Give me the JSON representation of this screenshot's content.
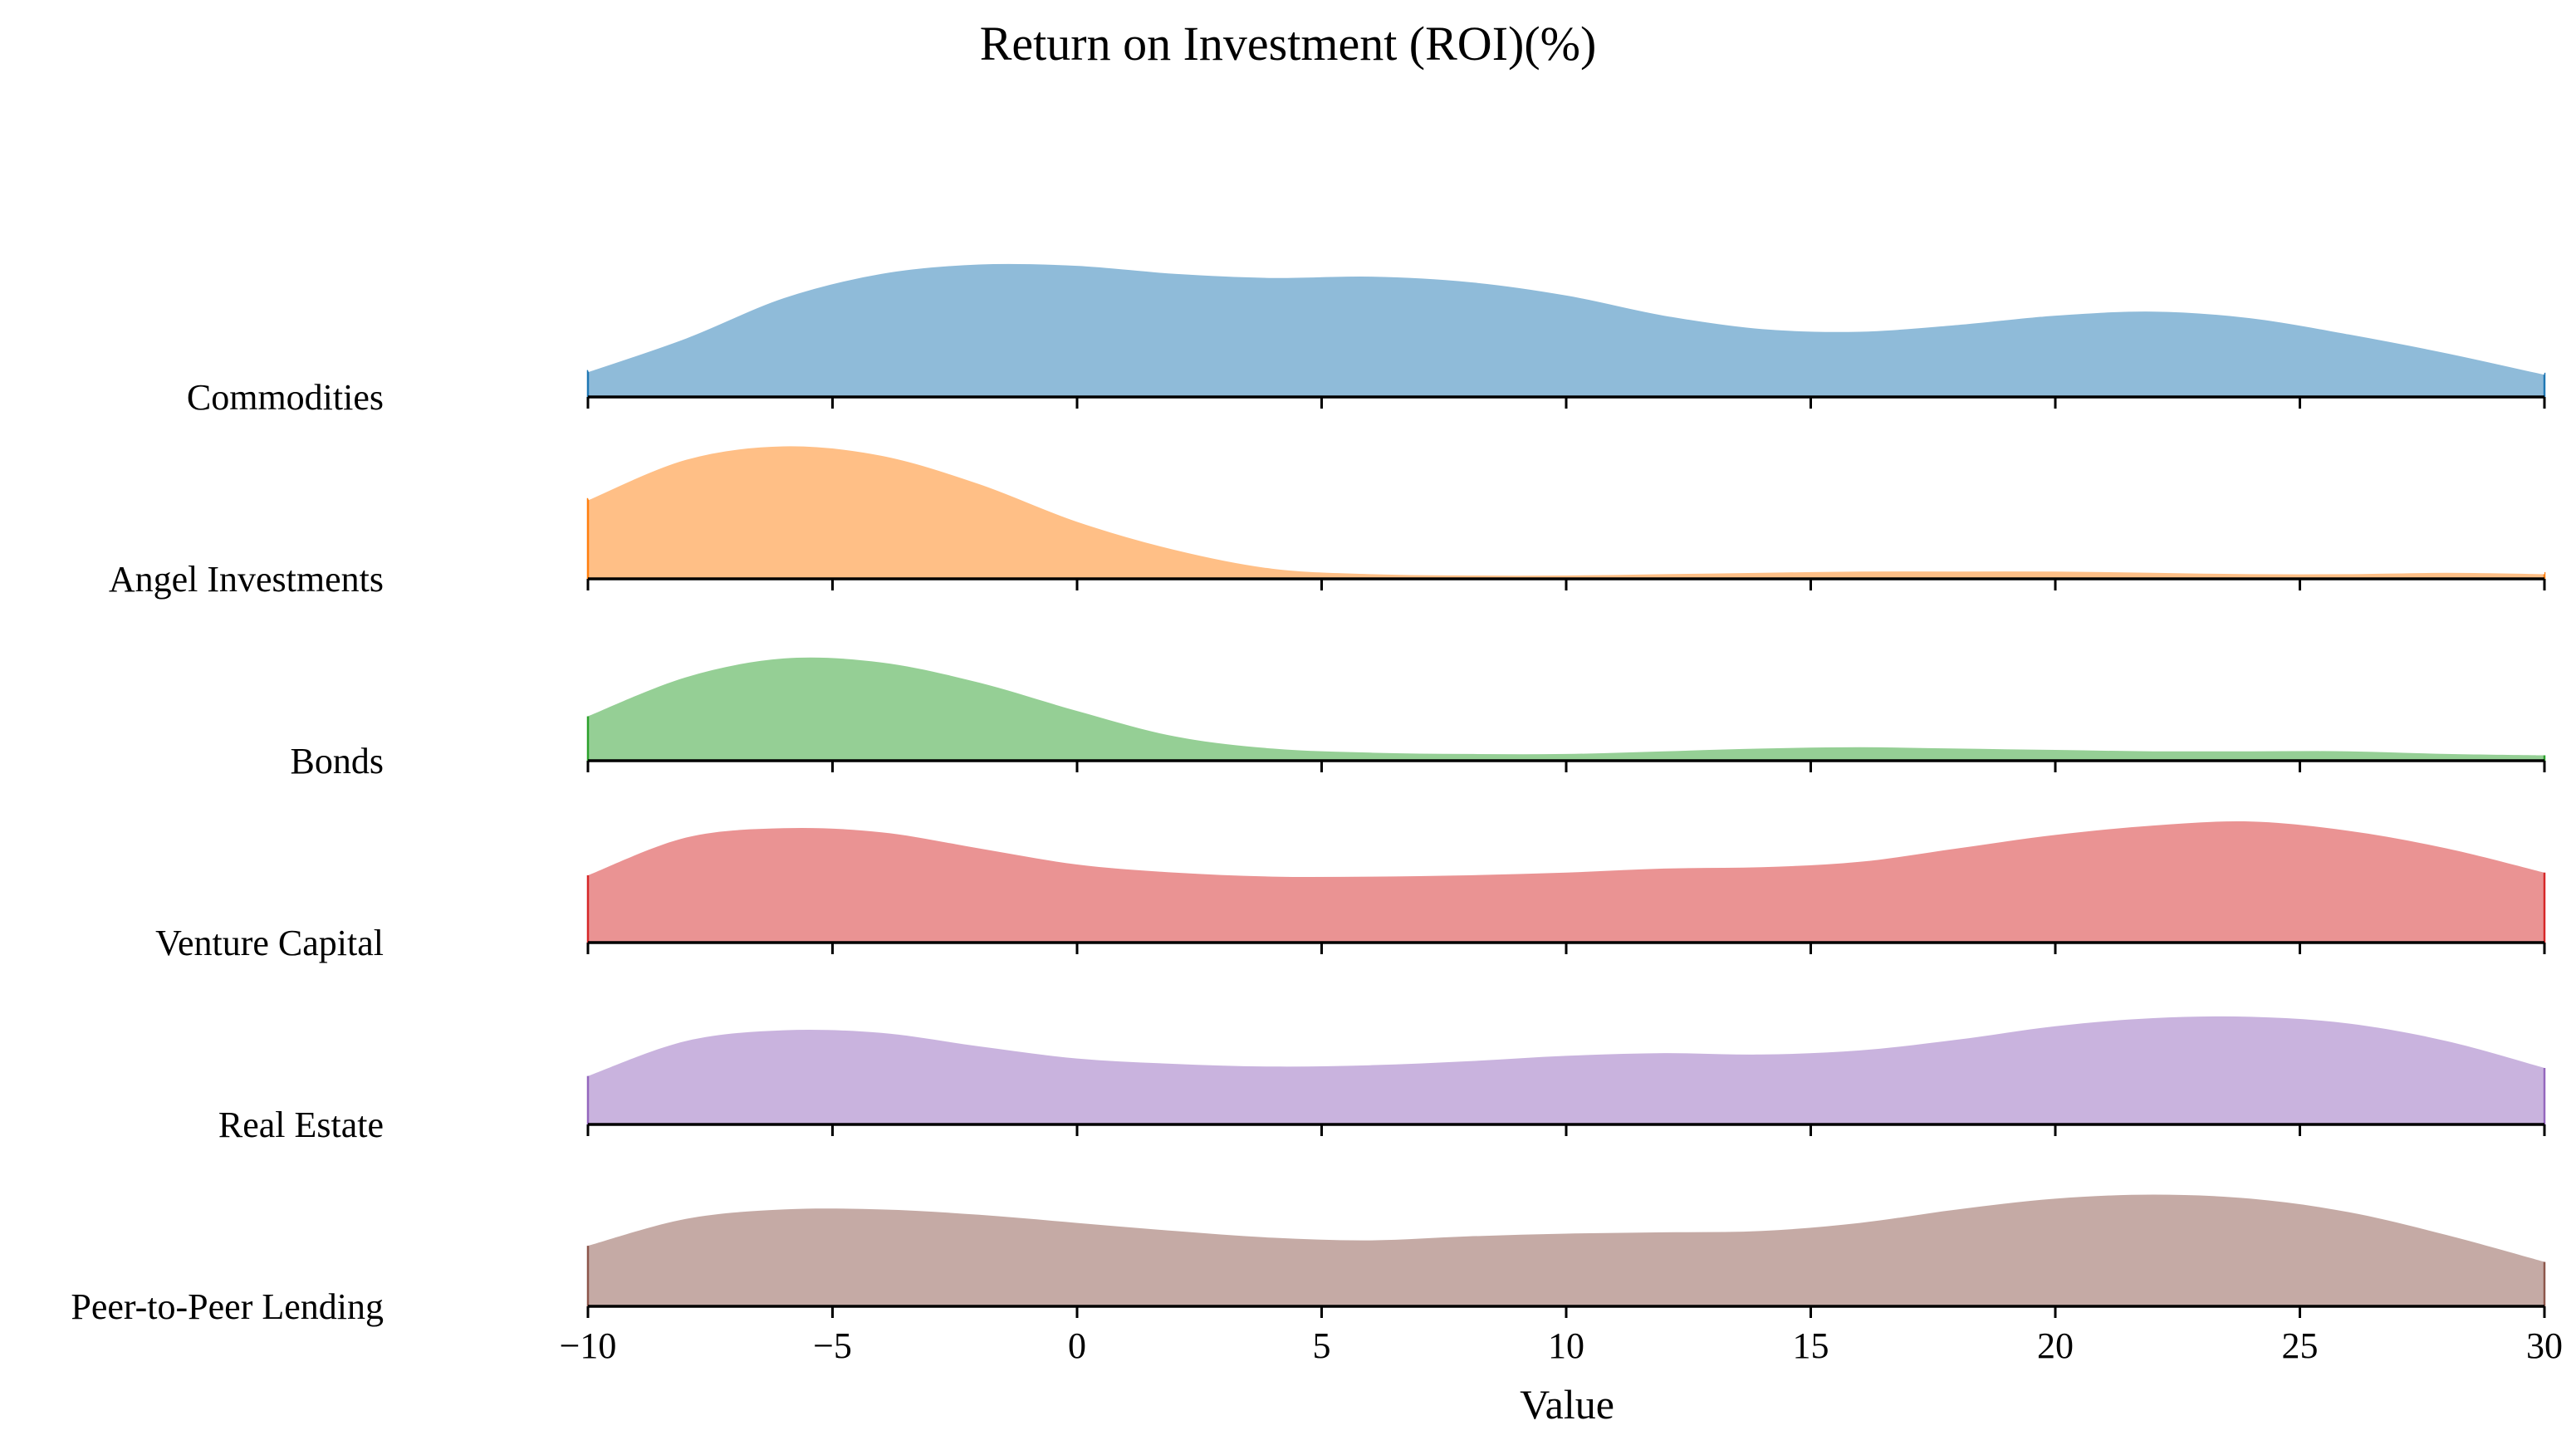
{
  "chart_data": {
    "type": "ridgeline",
    "title": "Return on Investment (ROI)(%)",
    "xlabel": "Value",
    "ylabel": "",
    "xlim": [
      -10,
      30
    ],
    "xticks": [
      -10,
      -5,
      0,
      5,
      10,
      15,
      20,
      25,
      30
    ],
    "x": [
      -10,
      -8,
      -6,
      -4,
      -2,
      0,
      2,
      4,
      6,
      8,
      10,
      12,
      14,
      16,
      18,
      20,
      22,
      24,
      26,
      28,
      30
    ],
    "series": [
      {
        "name": "Commodities",
        "color": "#1f77b4",
        "density": [
          0.2,
          0.45,
          0.75,
          0.93,
          1.0,
          0.99,
          0.93,
          0.9,
          0.91,
          0.87,
          0.77,
          0.62,
          0.52,
          0.5,
          0.55,
          0.62,
          0.65,
          0.6,
          0.48,
          0.34,
          0.18
        ],
        "overlap_outline": true
      },
      {
        "name": "Angel Investments",
        "color": "#ff7f0e",
        "density": [
          0.6,
          0.9,
          1.0,
          0.93,
          0.72,
          0.44,
          0.23,
          0.09,
          0.05,
          0.04,
          0.04,
          0.05,
          0.06,
          0.07,
          0.07,
          0.07,
          0.06,
          0.05,
          0.05,
          0.06,
          0.05
        ],
        "overlap_outline": true
      },
      {
        "name": "Bonds",
        "color": "#2ca02c",
        "density": [
          0.33,
          0.62,
          0.76,
          0.73,
          0.58,
          0.37,
          0.18,
          0.09,
          0.06,
          0.05,
          0.05,
          0.07,
          0.09,
          0.1,
          0.09,
          0.08,
          0.07,
          0.07,
          0.07,
          0.05,
          0.04
        ],
        "overlap_outline": false
      },
      {
        "name": "Venture Capital",
        "color": "#d62728",
        "density": [
          0.5,
          0.78,
          0.85,
          0.82,
          0.7,
          0.58,
          0.52,
          0.49,
          0.49,
          0.5,
          0.52,
          0.55,
          0.56,
          0.6,
          0.7,
          0.8,
          0.87,
          0.9,
          0.83,
          0.7,
          0.52
        ],
        "overlap_outline": false
      },
      {
        "name": "Real Estate",
        "color": "#9467bd",
        "density": [
          0.36,
          0.62,
          0.7,
          0.68,
          0.58,
          0.49,
          0.45,
          0.43,
          0.44,
          0.47,
          0.51,
          0.53,
          0.52,
          0.55,
          0.63,
          0.73,
          0.79,
          0.8,
          0.75,
          0.62,
          0.42
        ],
        "overlap_outline": false
      },
      {
        "name": "Peer-to-Peer Lending",
        "color": "#8c564b",
        "density": [
          0.45,
          0.65,
          0.72,
          0.72,
          0.68,
          0.62,
          0.56,
          0.51,
          0.49,
          0.52,
          0.54,
          0.55,
          0.56,
          0.62,
          0.72,
          0.8,
          0.83,
          0.8,
          0.7,
          0.53,
          0.33
        ],
        "overlap_outline": false
      }
    ]
  }
}
